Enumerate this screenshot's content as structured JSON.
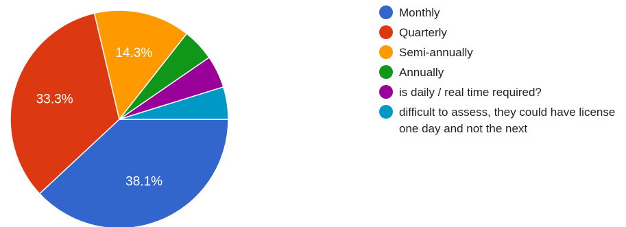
{
  "chart_data": {
    "type": "pie",
    "slices": [
      {
        "label": "Monthly",
        "value": 38.1,
        "display": "38.1%",
        "color": "#3366cc"
      },
      {
        "label": "Quarterly",
        "value": 33.3,
        "display": "33.3%",
        "color": "#dc3912"
      },
      {
        "label": "Semi-annually",
        "value": 14.3,
        "display": "14.3%",
        "color": "#ff9900"
      },
      {
        "label": "Annually",
        "value": 4.8,
        "display": "",
        "color": "#109618"
      },
      {
        "label": "is daily / real time required?",
        "value": 4.8,
        "display": "",
        "color": "#990099"
      },
      {
        "label": "difficult to assess, they could have license one day and not the next",
        "value": 4.8,
        "display": "",
        "color": "#0099c6"
      }
    ],
    "legend_position": "right"
  }
}
